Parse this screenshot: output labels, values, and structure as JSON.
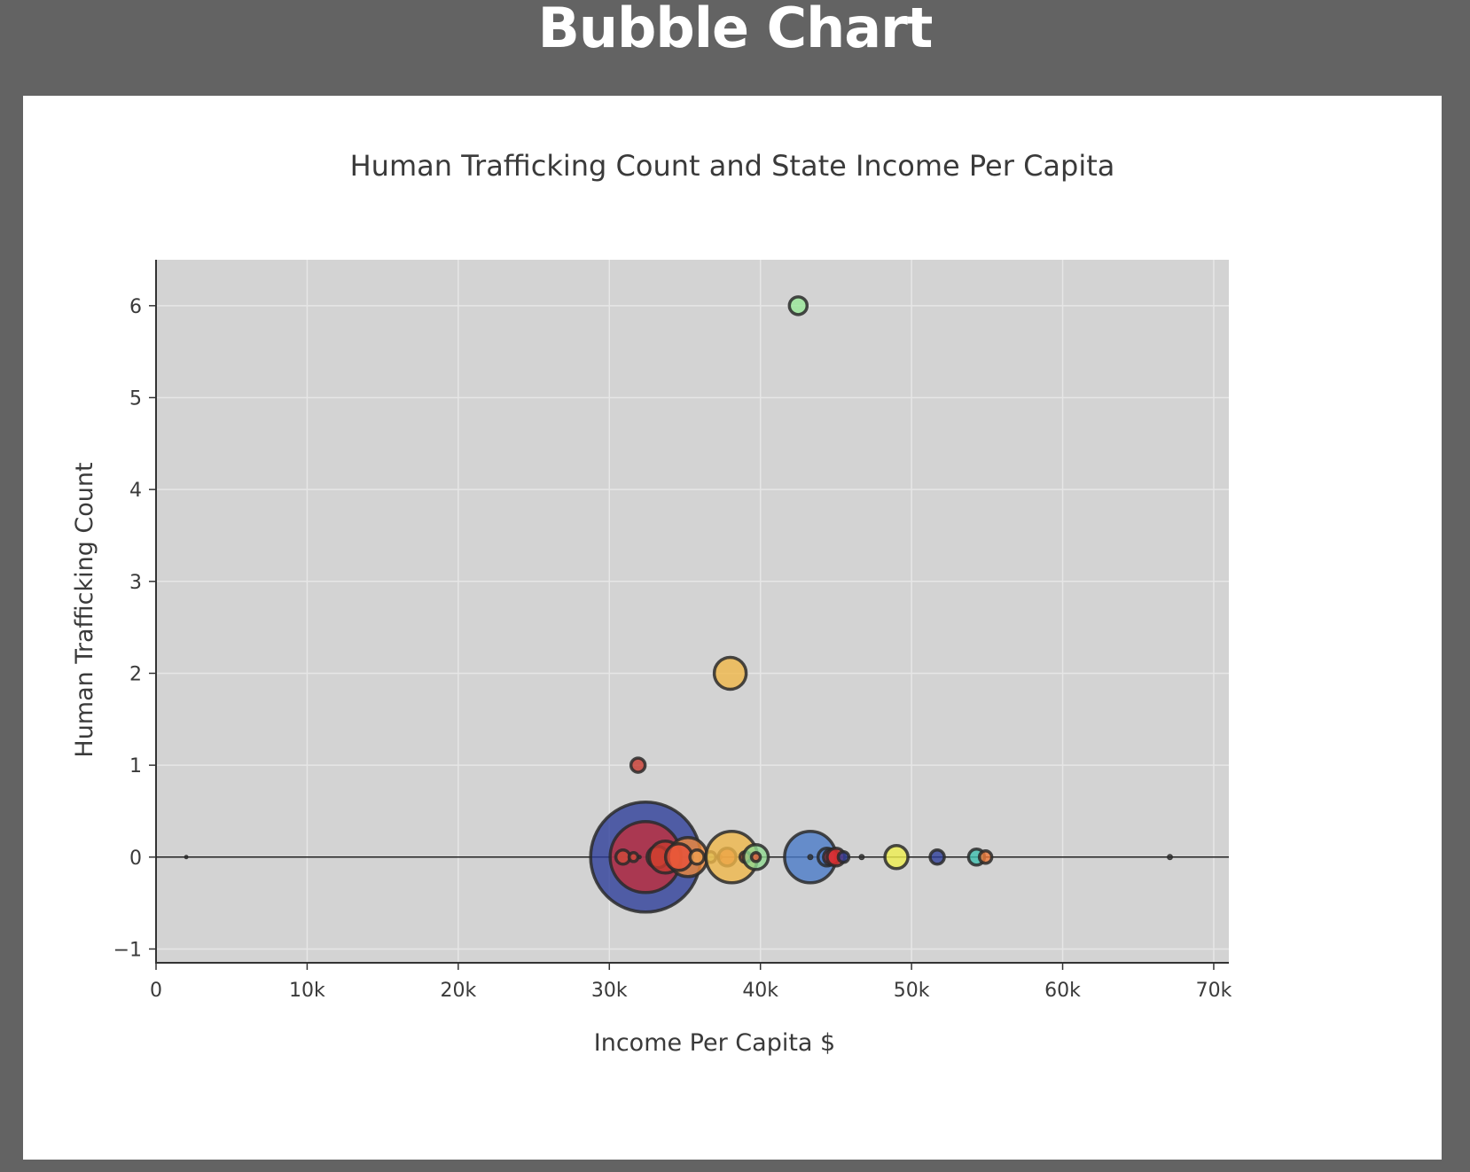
{
  "page": {
    "heading": "Bubble Chart"
  },
  "chart_data": {
    "type": "scatter",
    "subtype": "bubble",
    "title": "Human Trafficking Count and State Income Per Capita",
    "xlabel": "Income Per Capita $",
    "ylabel": "Human Trafficking Count",
    "xlim": [
      0,
      71000
    ],
    "ylim": [
      -1.15,
      6.5
    ],
    "x_ticks": [
      0,
      10000,
      20000,
      30000,
      40000,
      50000,
      60000,
      70000
    ],
    "x_tick_labels": [
      "0",
      "10k",
      "20k",
      "30k",
      "40k",
      "50k",
      "60k",
      "70k"
    ],
    "y_ticks": [
      -1,
      0,
      1,
      2,
      3,
      4,
      5,
      6
    ],
    "y_tick_labels": [
      "−1",
      "0",
      "1",
      "2",
      "3",
      "4",
      "5",
      "6"
    ],
    "grid": true,
    "zero_line": true,
    "legend": "none",
    "colors": {
      "plot_background": "#d3d3d3",
      "grid": "#e6e6e6",
      "bubble_edge": "#2a2a2a"
    },
    "points": [
      {
        "x": 32400,
        "y": 0,
        "size": 62,
        "color": "#2e3f9a"
      },
      {
        "x": 32400,
        "y": 0,
        "size": 40,
        "color": "#c0303c"
      },
      {
        "x": 2000,
        "y": 0,
        "size": 2,
        "color": "#2a2a2a"
      },
      {
        "x": 30900,
        "y": 0,
        "size": 8,
        "color": "#d04a3a"
      },
      {
        "x": 31600,
        "y": 0,
        "size": 5,
        "color": "#d04a3a"
      },
      {
        "x": 32000,
        "y": 0,
        "size": 2,
        "color": "#2a2a2a"
      },
      {
        "x": 33200,
        "y": 0,
        "size": 12,
        "color": "#e05a3a"
      },
      {
        "x": 33700,
        "y": 0,
        "size": 18,
        "color": "#c83a30"
      },
      {
        "x": 35200,
        "y": 0,
        "size": 22,
        "color": "#f08a3a"
      },
      {
        "x": 34600,
        "y": 0,
        "size": 15,
        "color": "#e8503a"
      },
      {
        "x": 35800,
        "y": 0,
        "size": 8,
        "color": "#f0a050"
      },
      {
        "x": 36700,
        "y": 0,
        "size": 6,
        "color": "#a8d080"
      },
      {
        "x": 37300,
        "y": 0,
        "size": 3,
        "color": "#2a2a2a"
      },
      {
        "x": 37800,
        "y": 0,
        "size": 10,
        "color": "#e05a3a"
      },
      {
        "x": 38100,
        "y": 0,
        "size": 29,
        "color": "#f0b84a"
      },
      {
        "x": 39000,
        "y": 0,
        "size": 6,
        "color": "#e05a3a"
      },
      {
        "x": 39700,
        "y": 0,
        "size": 14,
        "color": "#8fd890"
      },
      {
        "x": 39700,
        "y": 0,
        "size": 5,
        "color": "#e05a3a"
      },
      {
        "x": 43300,
        "y": 0,
        "size": 29,
        "color": "#4a7ac8"
      },
      {
        "x": 43300,
        "y": 0,
        "size": 3,
        "color": "#2a2a2a"
      },
      {
        "x": 44400,
        "y": 0,
        "size": 10,
        "color": "#4a7ac8"
      },
      {
        "x": 44700,
        "y": 0,
        "size": 9,
        "color": "#c83040"
      },
      {
        "x": 45000,
        "y": 0,
        "size": 10,
        "color": "#e03030"
      },
      {
        "x": 45500,
        "y": 0,
        "size": 6,
        "color": "#2e3f9a"
      },
      {
        "x": 46700,
        "y": 0,
        "size": 3,
        "color": "#2a2a2a"
      },
      {
        "x": 49000,
        "y": 0,
        "size": 13,
        "color": "#f0f050"
      },
      {
        "x": 51700,
        "y": 0,
        "size": 8,
        "color": "#2e3f9a"
      },
      {
        "x": 54300,
        "y": 0,
        "size": 9,
        "color": "#40c0b0"
      },
      {
        "x": 54900,
        "y": 0,
        "size": 7,
        "color": "#f07a3a"
      },
      {
        "x": 67100,
        "y": 0,
        "size": 3,
        "color": "#2a2a2a"
      },
      {
        "x": 42500,
        "y": 6,
        "size": 10,
        "color": "#98e898"
      },
      {
        "x": 38000,
        "y": 2,
        "size": 18,
        "color": "#f0b84a"
      },
      {
        "x": 31900,
        "y": 1,
        "size": 8,
        "color": "#c83a30"
      }
    ]
  }
}
